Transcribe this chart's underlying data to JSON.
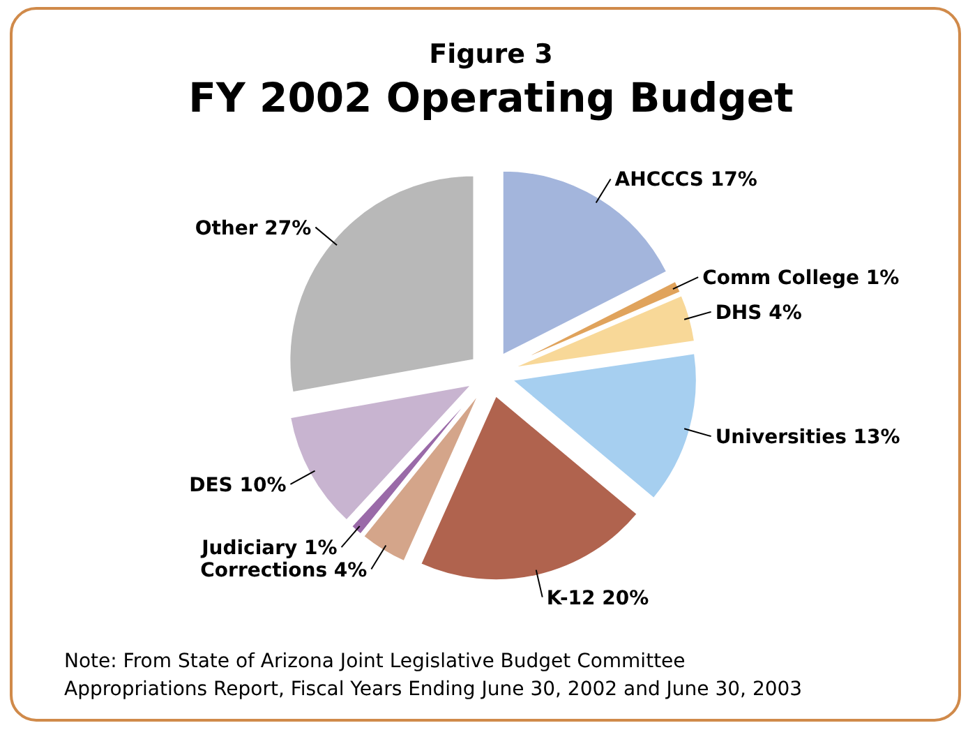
{
  "chart_data": {
    "type": "pie",
    "title": "FY 2002 Operating Budget",
    "subtitle": "Figure 3",
    "categories": [
      "AHCCCS",
      "Comm College",
      "DHS",
      "Universities",
      "K-12",
      "Corrections",
      "Judiciary",
      "DES",
      "Other"
    ],
    "values": [
      17,
      1,
      4,
      13,
      20,
      4,
      1,
      10,
      27
    ],
    "value_labels": [
      "17%",
      "1%",
      "4%",
      "13%",
      "20%",
      "4%",
      "1%",
      "10%",
      "27%"
    ],
    "colors": [
      "#a3b5dc",
      "#e0a35c",
      "#f8d898",
      "#a6cff0",
      "#b0634e",
      "#d4a58a",
      "#9a6aa8",
      "#c8b4d0",
      "#b8b8b8"
    ],
    "annotations": [
      "Note: From State of Arizona Joint Legislative Budget Committee Appropriations Report, Fiscal Years Ending June 30, 2002 and June 30, 2003"
    ]
  }
}
